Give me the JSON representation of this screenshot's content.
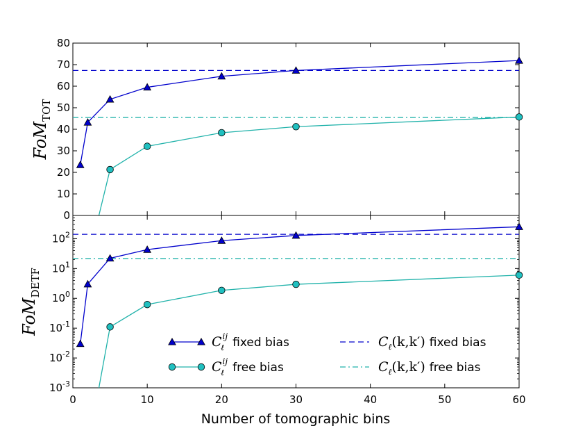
{
  "chart_data": {
    "x_label": "Number of tomographic bins",
    "x_ticks": [
      0,
      10,
      20,
      30,
      40,
      50,
      60
    ],
    "x_tick_labels": [
      "0",
      "10",
      "20",
      "30",
      "40",
      "50",
      "60"
    ],
    "xlim": [
      0,
      60
    ],
    "colors": {
      "fixed": "#0000cc",
      "free": "#20b2aa",
      "free_fill": "#20c0c0"
    },
    "panels": [
      {
        "id": "tot",
        "type": "line",
        "ylabel_main": "FoM",
        "ylabel_sub": "TOT",
        "yscale": "linear",
        "ylim": [
          0,
          80
        ],
        "y_ticks": [
          0,
          10,
          20,
          30,
          40,
          50,
          60,
          70,
          80
        ],
        "y_tick_labels": [
          "0",
          "10",
          "20",
          "30",
          "40",
          "50",
          "60",
          "70",
          "80"
        ],
        "series": [
          {
            "name": "fixed bias",
            "marker": "triangle",
            "color": "fixed",
            "x": [
              1,
              2,
              5,
              10,
              20,
              30,
              60
            ],
            "y": [
              23.5,
              43.2,
              53.9,
              59.5,
              64.6,
              67.3,
              71.9
            ]
          },
          {
            "name": "free bias",
            "marker": "circle",
            "color": "free",
            "x": [
              5,
              10,
              20,
              30,
              60
            ],
            "y": [
              21.3,
              32.1,
              38.4,
              41.2,
              45.7
            ],
            "tail_to": [
              3.5,
              0
            ]
          }
        ],
        "hlines": [
          {
            "name": "fixed bias",
            "style": "dashed",
            "color": "fixed",
            "y": 67.3
          },
          {
            "name": "free bias",
            "style": "dashdot",
            "color": "free",
            "y": 45.5
          }
        ]
      },
      {
        "id": "detf",
        "type": "line",
        "ylabel_main": "FoM",
        "ylabel_sub": "DETF",
        "yscale": "log",
        "ylim": [
          0.001,
          600
        ],
        "y_ticks": [
          0.001,
          0.01,
          0.1,
          1,
          10,
          100
        ],
        "y_tick_labels": [
          {
            "base": "10",
            "exp": "-3"
          },
          {
            "base": "10",
            "exp": "-2"
          },
          {
            "base": "10",
            "exp": "-1"
          },
          {
            "base": "10",
            "exp": "0"
          },
          {
            "base": "10",
            "exp": "1"
          },
          {
            "base": "10",
            "exp": "2"
          }
        ],
        "series": [
          {
            "name": "fixed bias",
            "marker": "triangle",
            "color": "fixed",
            "x": [
              1,
              2,
              5,
              10,
              20,
              30,
              60
            ],
            "y": [
              0.03,
              3.0,
              22,
              43,
              86,
              128,
              250
            ]
          },
          {
            "name": "free bias",
            "marker": "circle",
            "color": "free",
            "x": [
              5,
              10,
              20,
              30,
              60
            ],
            "y": [
              0.11,
              0.62,
              1.85,
              2.95,
              6.0
            ],
            "tail_to": [
              3.5,
              0.001
            ]
          }
        ],
        "hlines": [
          {
            "name": "fixed bias",
            "style": "dashed",
            "color": "fixed",
            "y": 140
          },
          {
            "name": "free bias",
            "style": "dashdot",
            "color": "free",
            "y": 21.5
          }
        ]
      }
    ],
    "legend": {
      "placement": "lower-center of bottom panel",
      "entries": [
        {
          "math_main": "C",
          "math_sub": "ℓ",
          "math_sup": "ij",
          "text": "fixed bias",
          "marker": "triangle",
          "color": "fixed",
          "style": "solid"
        },
        {
          "math_main": "C",
          "math_sub": "ℓ",
          "math_sup": "ij",
          "text": "free bias",
          "marker": "circle",
          "color": "free",
          "style": "solid"
        },
        {
          "math_main": "C",
          "math_sub": "ℓ",
          "math_args": "(k,k′)",
          "text": "fixed bias",
          "marker": "none",
          "color": "fixed",
          "style": "dashed"
        },
        {
          "math_main": "C",
          "math_sub": "ℓ",
          "math_args": "(k,k′)",
          "text": "free bias",
          "marker": "none",
          "color": "free",
          "style": "dashdot"
        }
      ]
    }
  }
}
